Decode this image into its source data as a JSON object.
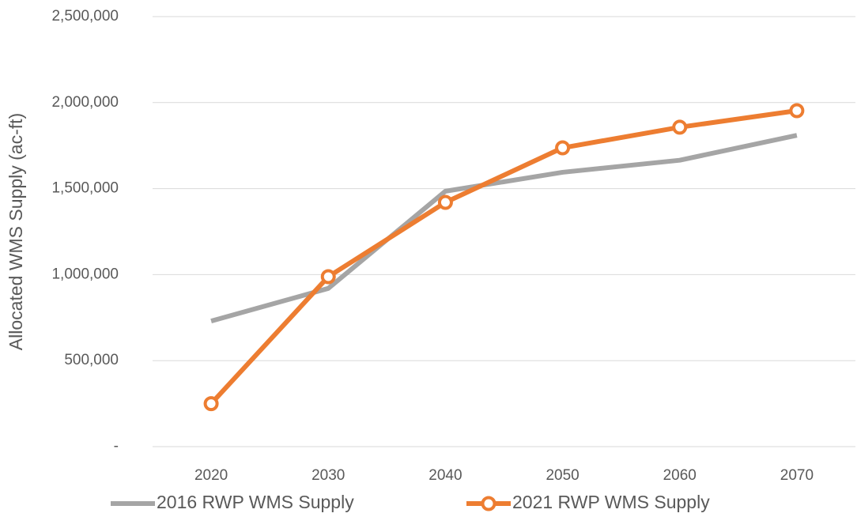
{
  "chart_data": {
    "type": "line",
    "y_label": "Allocated WMS Supply (ac-ft)",
    "categories": [
      "2020",
      "2030",
      "2040",
      "2050",
      "2060",
      "2070"
    ],
    "series": [
      {
        "name": "2016 RWP WMS Supply",
        "color": "#a5a5a5",
        "marker": false,
        "values": [
          730000,
          920000,
          1485000,
          1595000,
          1665000,
          1810000
        ]
      },
      {
        "name": "2021 RWP WMS Supply",
        "color": "#ed7d31",
        "marker": true,
        "values": [
          250000,
          988000,
          1420000,
          1737000,
          1857000,
          1953000
        ]
      }
    ],
    "ylim": [
      0,
      2500000
    ],
    "yticks": [
      {
        "value": 0,
        "label": "-"
      },
      {
        "value": 500000,
        "label": "500,000"
      },
      {
        "value": 1000000,
        "label": "1,000,000"
      },
      {
        "value": 1500000,
        "label": "1,500,000"
      },
      {
        "value": 2000000,
        "label": "2,000,000"
      },
      {
        "value": 2500000,
        "label": "2,500,000"
      }
    ],
    "grid": true,
    "legend": "bottom"
  }
}
